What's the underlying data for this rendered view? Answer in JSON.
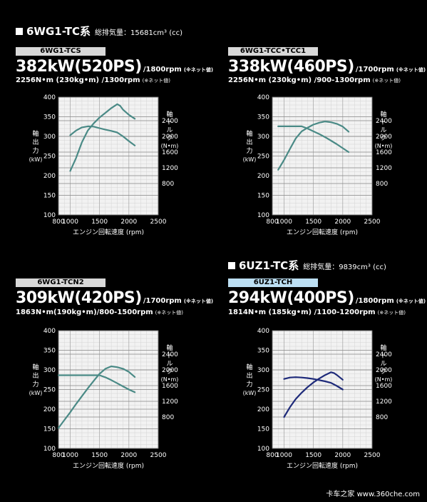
{
  "sections": [
    {
      "label": "6WG1-TC系",
      "displacement": "総排気量：15681cm³ (cc)"
    },
    {
      "label": "6UZ1-TC系",
      "displacement": "総排気量：9839cm³ (cc)"
    }
  ],
  "panels": [
    {
      "model": "6WG1-TCS",
      "power": "382kW(520PS)",
      "power_rpm": "/1800rpm",
      "power_note": "(※ネット値)",
      "torque": "2256N•m (230kg•m) /1300rpm",
      "torque_note": "(※ネット値)"
    },
    {
      "model": "6WG1-TCC•TCC1",
      "power": "338kW(460PS)",
      "power_rpm": "/1700rpm",
      "power_note": "(※ネット値)",
      "torque": "2256N•m (230kg•m) /900-1300rpm",
      "torque_note": "(※ネット値)"
    },
    {
      "model": "6WG1-TCN2",
      "power": "309kW(420PS)",
      "power_rpm": "/1700rpm",
      "power_note": "(※ネット値)",
      "torque": "1863N•m(190kg•m)/800-1500rpm",
      "torque_note": "(※ネット値)"
    },
    {
      "model": "6UZ1-TCH",
      "power": "294kW(400PS)",
      "power_rpm": "/1800rpm",
      "power_note": "(※ネット値)",
      "torque": "1814N•m (185kg•m) /1100-1200rpm",
      "torque_note": "(※ネット値)"
    }
  ],
  "chart_labels": {
    "xlabel": "エンジン回転速度 (rpm)",
    "left_ylabel": [
      "軸",
      "出",
      "力",
      "(kW)"
    ],
    "right_ylabel": [
      "軸",
      "ト",
      "ル",
      "ク",
      "(N•m)"
    ]
  },
  "chart_data": [
    {
      "type": "line",
      "xlim": [
        800,
        2500
      ],
      "ylim": [
        100,
        400
      ],
      "y2lim": [
        0,
        3000
      ],
      "grid": true,
      "x_ticks": [
        "800",
        "1000",
        "1500",
        "2000",
        "2500"
      ],
      "y_ticks": [
        "100",
        "150",
        "200",
        "250",
        "300",
        "350",
        "400"
      ],
      "y2_ticks": [
        "800",
        "1200",
        "1600",
        "2000",
        "2400"
      ],
      "line_color": "#4a8a86",
      "series": [
        {
          "axis": "left",
          "x": [
            1000,
            1100,
            1200,
            1300,
            1400,
            1500,
            1600,
            1700,
            1800,
            1850,
            1900,
            2000,
            2100
          ],
          "y": [
            212,
            245,
            285,
            315,
            333,
            348,
            360,
            372,
            382,
            378,
            368,
            355,
            345
          ]
        },
        {
          "axis": "right",
          "x": [
            1000,
            1100,
            1200,
            1300,
            1400,
            1500,
            1600,
            1700,
            1800,
            1900,
            2000,
            2100
          ],
          "y": [
            2030,
            2150,
            2230,
            2256,
            2250,
            2210,
            2170,
            2140,
            2100,
            2000,
            1880,
            1770
          ]
        }
      ]
    },
    {
      "type": "line",
      "xlim": [
        800,
        2500
      ],
      "ylim": [
        100,
        400
      ],
      "y2lim": [
        0,
        3000
      ],
      "grid": true,
      "x_ticks": [
        "800",
        "1000",
        "1500",
        "2000",
        "2500"
      ],
      "y_ticks": [
        "100",
        "150",
        "200",
        "250",
        "300",
        "350",
        "400"
      ],
      "y2_ticks": [
        "800",
        "1200",
        "1600",
        "2000",
        "2400"
      ],
      "line_color": "#4a8a86",
      "series": [
        {
          "axis": "left",
          "x": [
            900,
            1000,
            1100,
            1200,
            1300,
            1400,
            1500,
            1600,
            1700,
            1800,
            1900,
            2000,
            2100
          ],
          "y": [
            215,
            240,
            268,
            295,
            313,
            322,
            330,
            335,
            338,
            336,
            332,
            325,
            312
          ]
        },
        {
          "axis": "right",
          "x": [
            900,
            1000,
            1100,
            1200,
            1300,
            1400,
            1500,
            1600,
            1700,
            1800,
            1900,
            2000,
            2100
          ],
          "y": [
            2256,
            2256,
            2256,
            2256,
            2256,
            2200,
            2130,
            2060,
            1980,
            1890,
            1800,
            1700,
            1600
          ]
        }
      ]
    },
    {
      "type": "line",
      "xlim": [
        800,
        2500
      ],
      "ylim": [
        100,
        400
      ],
      "y2lim": [
        0,
        3000
      ],
      "grid": true,
      "x_ticks": [
        "800",
        "1000",
        "1500",
        "2000",
        "2500"
      ],
      "y_ticks": [
        "100",
        "150",
        "200",
        "250",
        "300",
        "350",
        "400"
      ],
      "y2_ticks": [
        "800",
        "1200",
        "1600",
        "2000",
        "2400"
      ],
      "line_color": "#4a8a86",
      "series": [
        {
          "axis": "left",
          "x": [
            800,
            900,
            1000,
            1100,
            1200,
            1300,
            1400,
            1500,
            1600,
            1700,
            1800,
            1900,
            2000,
            2100
          ],
          "y": [
            152,
            172,
            192,
            213,
            233,
            253,
            272,
            290,
            303,
            309,
            307,
            303,
            295,
            282
          ]
        },
        {
          "axis": "right",
          "x": [
            800,
            1000,
            1200,
            1400,
            1500,
            1600,
            1700,
            1800,
            1900,
            2000,
            2100
          ],
          "y": [
            1863,
            1863,
            1863,
            1863,
            1863,
            1810,
            1740,
            1660,
            1580,
            1500,
            1430
          ]
        }
      ]
    },
    {
      "type": "line",
      "xlim": [
        800,
        2500
      ],
      "ylim": [
        100,
        400
      ],
      "y2lim": [
        0,
        3000
      ],
      "grid": true,
      "x_ticks": [
        "800",
        "1000",
        "1500",
        "2000",
        "2500"
      ],
      "y_ticks": [
        "100",
        "150",
        "200",
        "250",
        "300",
        "350",
        "400"
      ],
      "y2_ticks": [
        "800",
        "1200",
        "1600",
        "2000",
        "2400"
      ],
      "line_color": "#1e2a7a",
      "series": [
        {
          "axis": "left",
          "x": [
            1000,
            1100,
            1200,
            1300,
            1400,
            1500,
            1600,
            1700,
            1800,
            1850,
            1900,
            2000
          ],
          "y": [
            180,
            205,
            226,
            242,
            256,
            268,
            278,
            287,
            294,
            292,
            287,
            275
          ]
        },
        {
          "axis": "right",
          "x": [
            1000,
            1100,
            1200,
            1300,
            1400,
            1500,
            1600,
            1700,
            1800,
            1900,
            2000
          ],
          "y": [
            1770,
            1805,
            1814,
            1805,
            1790,
            1770,
            1740,
            1710,
            1670,
            1590,
            1500
          ]
        }
      ]
    }
  ],
  "watermark": "卡车之家 www.360che.com"
}
